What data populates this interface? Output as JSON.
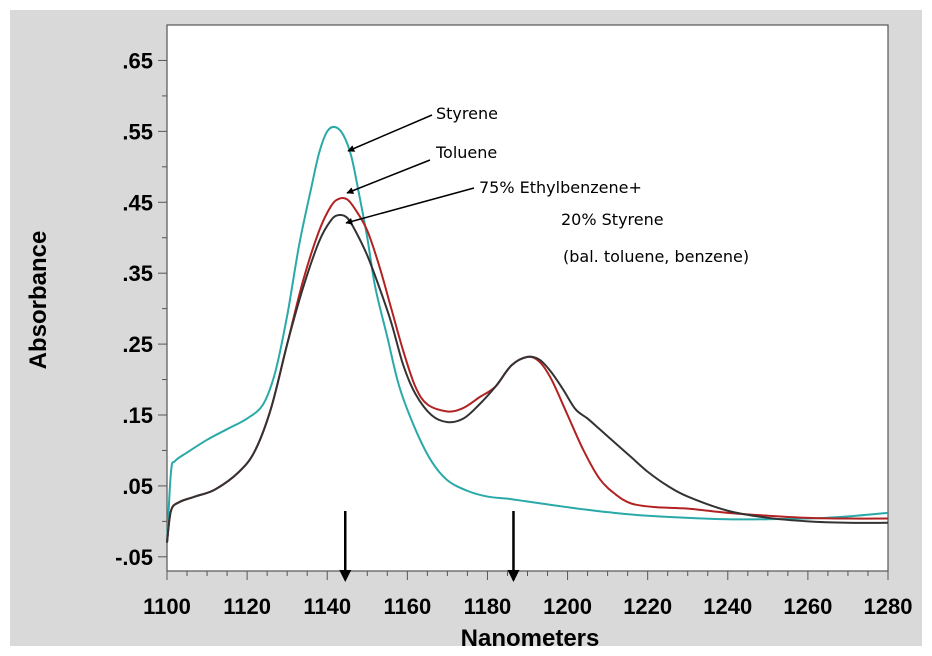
{
  "chart_data": {
    "type": "line",
    "title": "",
    "xlabel": "Nanometers",
    "ylabel": "Absorbance",
    "xlim": [
      1100,
      1280
    ],
    "ylim": [
      -0.07,
      0.7
    ],
    "x_ticks": [
      1100,
      1120,
      1140,
      1160,
      1180,
      1200,
      1220,
      1240,
      1260,
      1280
    ],
    "x_tick_labels": [
      "1100",
      "1120",
      "1140",
      "1160",
      "1180",
      "1200",
      "1220",
      "1240",
      "1260",
      "1280"
    ],
    "y_ticks": [
      -0.05,
      0.05,
      0.15,
      0.25,
      0.35,
      0.45,
      0.55,
      0.65
    ],
    "y_tick_labels": [
      "-.05",
      ".05",
      ".15",
      ".25",
      ".35",
      ".45",
      ".55",
      ".65"
    ],
    "grid": false,
    "legend": "none",
    "series": [
      {
        "color": "#2aa9a9",
        "points": [
          [
            1100,
            -0.03
          ],
          [
            1101,
            0.07
          ],
          [
            1102,
            0.085
          ],
          [
            1105,
            0.097
          ],
          [
            1110,
            0.115
          ],
          [
            1115,
            0.13
          ],
          [
            1120,
            0.145
          ],
          [
            1124,
            0.165
          ],
          [
            1127,
            0.21
          ],
          [
            1130,
            0.29
          ],
          [
            1133,
            0.39
          ],
          [
            1136,
            0.47
          ],
          [
            1138,
            0.52
          ],
          [
            1140,
            0.55
          ],
          [
            1142,
            0.556
          ],
          [
            1144,
            0.545
          ],
          [
            1146,
            0.515
          ],
          [
            1148,
            0.46
          ],
          [
            1150,
            0.4
          ],
          [
            1152,
            0.33
          ],
          [
            1155,
            0.26
          ],
          [
            1158,
            0.19
          ],
          [
            1162,
            0.13
          ],
          [
            1166,
            0.085
          ],
          [
            1170,
            0.058
          ],
          [
            1175,
            0.043
          ],
          [
            1180,
            0.035
          ],
          [
            1185,
            0.032
          ],
          [
            1190,
            0.028
          ],
          [
            1200,
            0.02
          ],
          [
            1210,
            0.013
          ],
          [
            1220,
            0.008
          ],
          [
            1240,
            0.003
          ],
          [
            1260,
            0.004
          ],
          [
            1270,
            0.007
          ],
          [
            1280,
            0.012
          ]
        ]
      },
      {
        "color": "#b22222",
        "points": [
          [
            1100,
            -0.03
          ],
          [
            1101,
            0.015
          ],
          [
            1103,
            0.027
          ],
          [
            1107,
            0.035
          ],
          [
            1112,
            0.045
          ],
          [
            1118,
            0.07
          ],
          [
            1122,
            0.1
          ],
          [
            1126,
            0.16
          ],
          [
            1130,
            0.25
          ],
          [
            1134,
            0.34
          ],
          [
            1138,
            0.41
          ],
          [
            1141,
            0.445
          ],
          [
            1143,
            0.455
          ],
          [
            1145,
            0.454
          ],
          [
            1147,
            0.44
          ],
          [
            1150,
            0.41
          ],
          [
            1153,
            0.36
          ],
          [
            1156,
            0.3
          ],
          [
            1159,
            0.24
          ],
          [
            1162,
            0.19
          ],
          [
            1165,
            0.165
          ],
          [
            1170,
            0.155
          ],
          [
            1174,
            0.16
          ],
          [
            1178,
            0.175
          ],
          [
            1182,
            0.19
          ],
          [
            1186,
            0.22
          ],
          [
            1190,
            0.232
          ],
          [
            1193,
            0.225
          ],
          [
            1196,
            0.2
          ],
          [
            1200,
            0.15
          ],
          [
            1204,
            0.1
          ],
          [
            1208,
            0.06
          ],
          [
            1212,
            0.038
          ],
          [
            1216,
            0.025
          ],
          [
            1222,
            0.02
          ],
          [
            1230,
            0.018
          ],
          [
            1240,
            0.012
          ],
          [
            1250,
            0.008
          ],
          [
            1260,
            0.005
          ],
          [
            1270,
            0.004
          ],
          [
            1280,
            0.004
          ]
        ]
      },
      {
        "color": "#333333",
        "points": [
          [
            1100,
            -0.03
          ],
          [
            1101,
            0.015
          ],
          [
            1103,
            0.027
          ],
          [
            1107,
            0.035
          ],
          [
            1112,
            0.045
          ],
          [
            1118,
            0.07
          ],
          [
            1122,
            0.1
          ],
          [
            1126,
            0.16
          ],
          [
            1130,
            0.25
          ],
          [
            1134,
            0.33
          ],
          [
            1138,
            0.395
          ],
          [
            1141,
            0.425
          ],
          [
            1143,
            0.432
          ],
          [
            1145,
            0.428
          ],
          [
            1147,
            0.41
          ],
          [
            1150,
            0.375
          ],
          [
            1153,
            0.33
          ],
          [
            1156,
            0.28
          ],
          [
            1159,
            0.22
          ],
          [
            1162,
            0.18
          ],
          [
            1166,
            0.15
          ],
          [
            1170,
            0.14
          ],
          [
            1174,
            0.145
          ],
          [
            1178,
            0.165
          ],
          [
            1182,
            0.19
          ],
          [
            1186,
            0.22
          ],
          [
            1190,
            0.232
          ],
          [
            1193,
            0.228
          ],
          [
            1196,
            0.21
          ],
          [
            1199,
            0.185
          ],
          [
            1202,
            0.158
          ],
          [
            1205,
            0.145
          ],
          [
            1208,
            0.13
          ],
          [
            1212,
            0.11
          ],
          [
            1216,
            0.09
          ],
          [
            1220,
            0.07
          ],
          [
            1225,
            0.05
          ],
          [
            1230,
            0.035
          ],
          [
            1240,
            0.015
          ],
          [
            1250,
            0.005
          ],
          [
            1260,
            0.0
          ],
          [
            1270,
            -0.002
          ],
          [
            1280,
            -0.002
          ]
        ]
      }
    ],
    "annotations": [
      {
        "text": "Styrene",
        "point_to": [
          1143,
          0.555
        ]
      },
      {
        "text": "Toluene",
        "point_to": [
          1144,
          0.455
        ]
      },
      {
        "text": "75% Ethylbenzene+",
        "point_to": [
          1144,
          0.432
        ]
      },
      {
        "text": "20% Styrene"
      },
      {
        "text": "(bal. toluene, benzene)"
      }
    ],
    "marker_arrows_x": [
      1144.5,
      1186.5
    ]
  }
}
